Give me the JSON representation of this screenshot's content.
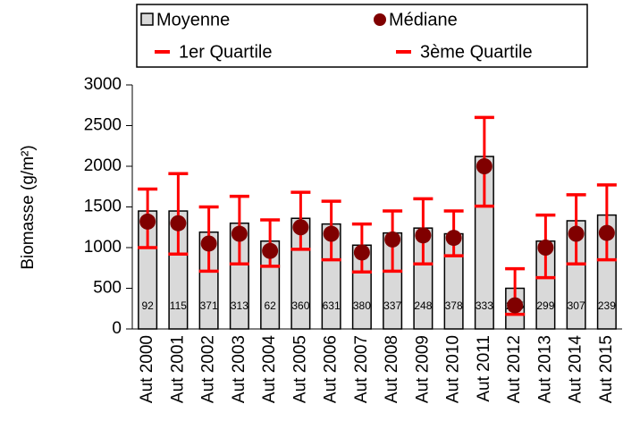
{
  "chart_data": {
    "type": "bar",
    "ylabel": "Biomasse (g/m²)",
    "categories": [
      "Aut 2000",
      "Aut 2001",
      "Aut 2002",
      "Aut 2003",
      "Aut 2004",
      "Aut 2005",
      "Aut 2006",
      "Aut 2007",
      "Aut 2008",
      "Aut 2009",
      "Aut 2010",
      "Aut 2011",
      "Aut 2012",
      "Aut 2013",
      "Aut 2014",
      "Aut 2015"
    ],
    "series": [
      {
        "name": "Moyenne",
        "color": "#d9d9d9",
        "values": [
          1450,
          1450,
          1190,
          1300,
          1080,
          1360,
          1290,
          1030,
          1180,
          1240,
          1170,
          2120,
          500,
          1080,
          1330,
          1400
        ]
      },
      {
        "name": "Médiane",
        "color": "#800000",
        "values": [
          1320,
          1300,
          1050,
          1170,
          960,
          1250,
          1170,
          940,
          1100,
          1150,
          1120,
          2000,
          290,
          1000,
          1170,
          1180
        ]
      },
      {
        "name": "1er Quartile",
        "color": "#ff0000",
        "values": [
          1000,
          920,
          710,
          800,
          770,
          980,
          850,
          700,
          710,
          800,
          900,
          1510,
          180,
          630,
          800,
          850
        ]
      },
      {
        "name": "3ème Quartile",
        "color": "#ff0000",
        "values": [
          1720,
          1910,
          1500,
          1630,
          1340,
          1680,
          1570,
          1290,
          1450,
          1600,
          1450,
          2600,
          740,
          1400,
          1650,
          1770
        ]
      }
    ],
    "counts": [
      "92",
      "115",
      "371",
      "313",
      "62",
      "360",
      "631",
      "380",
      "337",
      "248",
      "378",
      "333",
      "255",
      "299",
      "307",
      "239"
    ],
    "ylim": [
      0,
      3000
    ],
    "yticks": [
      0,
      500,
      1000,
      1500,
      2000,
      2500,
      3000
    ]
  }
}
